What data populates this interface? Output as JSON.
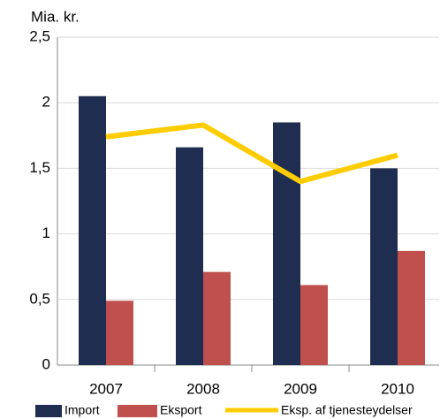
{
  "chart_data": {
    "type": "bar-line",
    "ylabel": "Mia. kr.",
    "categories": [
      "2007",
      "2008",
      "2009",
      "2010"
    ],
    "series": [
      {
        "name": "Import",
        "type": "bar",
        "color": "#1f2d50",
        "values": [
          2.05,
          1.66,
          1.85,
          1.5
        ]
      },
      {
        "name": "Eksport",
        "type": "bar",
        "color": "#c0504d",
        "values": [
          0.49,
          0.71,
          0.61,
          0.87
        ]
      },
      {
        "name": "Eksp. af tjenesteydelser",
        "type": "line",
        "color": "#ffcc00",
        "values": [
          1.74,
          1.83,
          1.4,
          1.6
        ]
      }
    ],
    "ylim": [
      0,
      2.5
    ],
    "yticks": [
      0,
      {
        "value": 0.5,
        "label": "0,5"
      },
      1,
      {
        "value": 1.5,
        "label": "1,5"
      },
      2,
      {
        "value": 2.5,
        "label": "2,5"
      }
    ],
    "grid": true
  }
}
